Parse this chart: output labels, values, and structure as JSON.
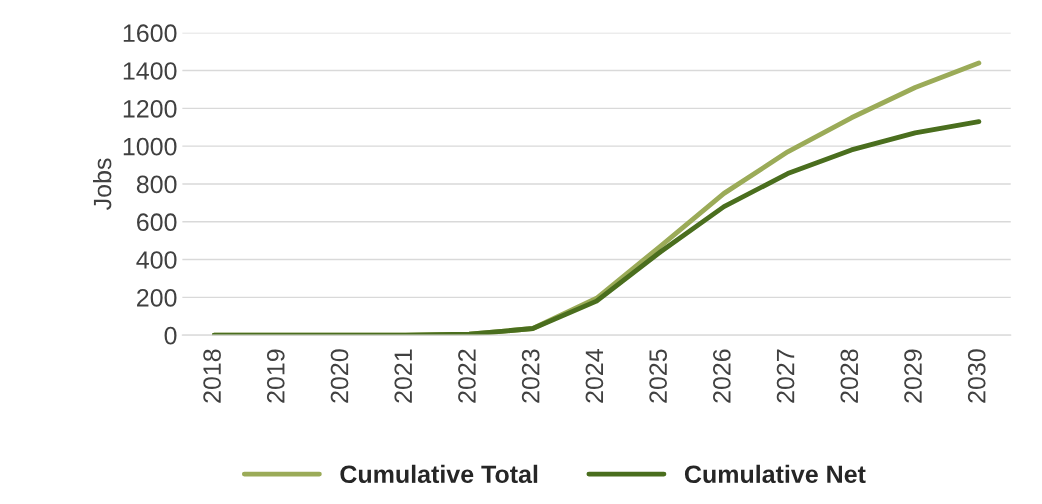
{
  "chart_data": {
    "type": "line",
    "ylabel": "Jobs",
    "categories": [
      "2018",
      "2019",
      "2020",
      "2021",
      "2022",
      "2023",
      "2024",
      "2025",
      "2026",
      "2027",
      "2028",
      "2029",
      "2030"
    ],
    "series": [
      {
        "name": "Cumulative Total",
        "color": "#9bab58",
        "values": [
          0,
          0,
          0,
          0,
          5,
          35,
          195,
          470,
          750,
          970,
          1150,
          1310,
          1440
        ]
      },
      {
        "name": "Cumulative Net",
        "color": "#4a6e1e",
        "values": [
          0,
          0,
          0,
          0,
          5,
          35,
          180,
          440,
          680,
          855,
          980,
          1070,
          1130
        ]
      }
    ],
    "ylim": [
      0,
      1600
    ],
    "yticks": [
      0,
      200,
      400,
      600,
      800,
      1000,
      1200,
      1400,
      1600
    ],
    "grid": "y",
    "legend": "bottom",
    "marker": "none",
    "line_style": "solid"
  }
}
